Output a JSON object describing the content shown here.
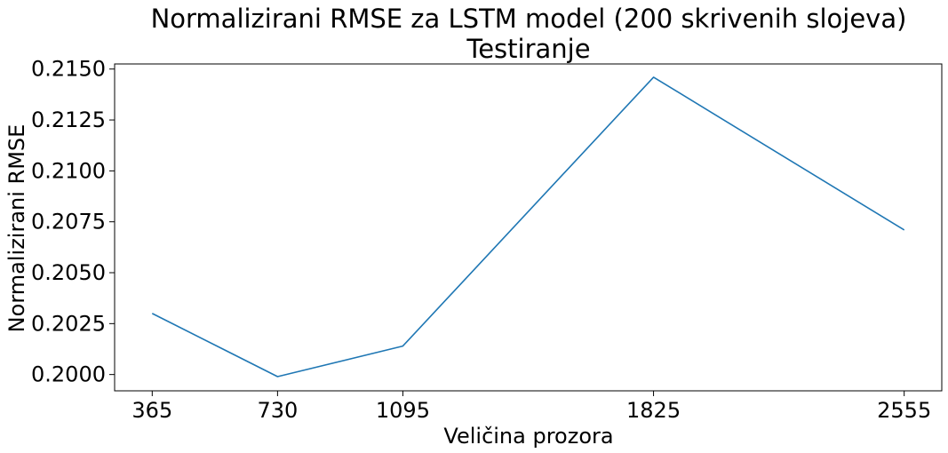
{
  "chart_data": {
    "type": "line",
    "title": "Normalizirani RMSE za LSTM model (200 skrivenih slojeva)",
    "subtitle": "Testiranje",
    "xlabel": "Veličina prozora",
    "ylabel": "Normalizirani RMSE",
    "x": [
      365,
      730,
      1095,
      1825,
      2555
    ],
    "series": [
      {
        "values": [
          0.203,
          0.1999,
          0.2014,
          0.2146,
          0.2071
        ]
      }
    ],
    "xticks": [
      365,
      730,
      1095,
      1825,
      2555
    ],
    "yticks": [
      0.2,
      0.2025,
      0.205,
      0.2075,
      0.21,
      0.2125,
      0.215
    ],
    "ytick_labels": [
      "0.2000",
      "0.2025",
      "0.2050",
      "0.2075",
      "0.2100",
      "0.2125",
      "0.2150"
    ],
    "xlim": [
      255.5,
      2664.5
    ],
    "ylim": [
      0.1992,
      0.21525
    ],
    "grid": false,
    "line_color": "#1f77b4"
  }
}
